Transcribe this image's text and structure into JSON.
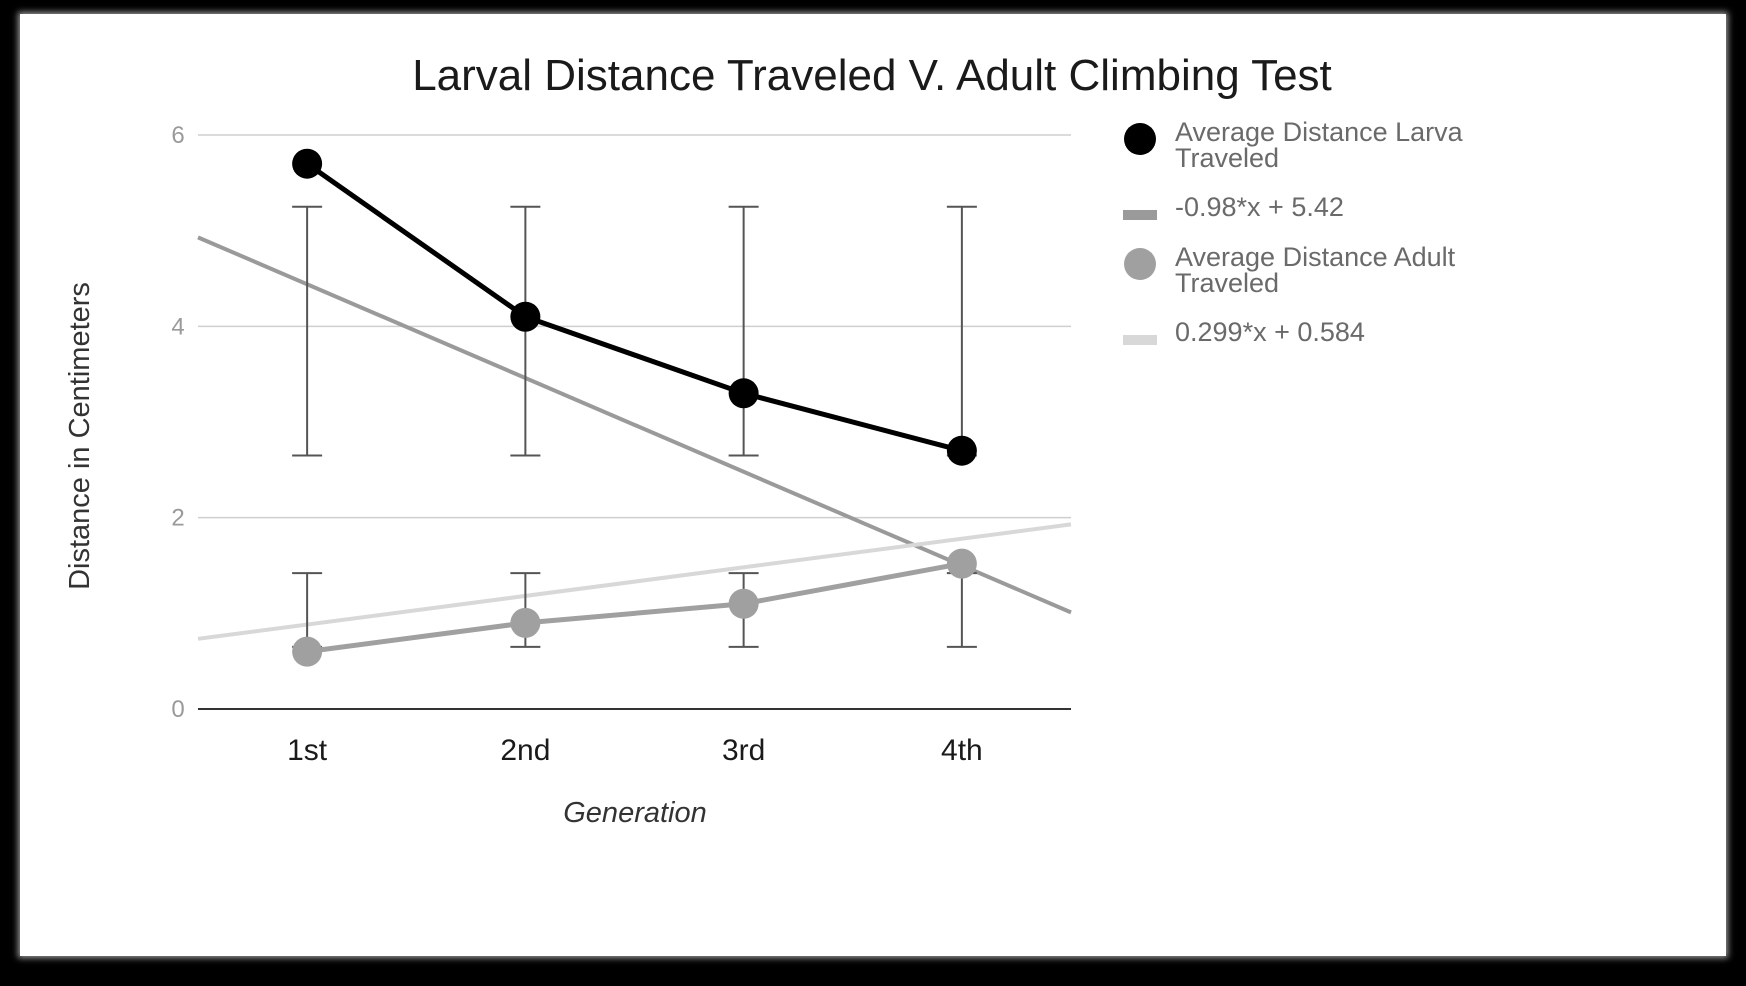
{
  "chart_data": {
    "type": "line",
    "title": "Larval Distance Traveled V. Adult Climbing Test",
    "xlabel": "Generation",
    "ylabel": "Distance in Centimeters",
    "categories": [
      "1st",
      "2nd",
      "3rd",
      "4th"
    ],
    "ylim": [
      0,
      6
    ],
    "yticks": [
      0,
      2,
      4,
      6
    ],
    "grid": true,
    "legend_position": "right",
    "series": [
      {
        "name": "Average Distance Larva Traveled",
        "values": [
          5.7,
          4.1,
          3.3,
          2.7
        ],
        "error_low": [
          2.65,
          2.65,
          2.65,
          2.65
        ],
        "error_high": [
          5.25,
          5.25,
          5.25,
          5.25
        ],
        "color": "#000000",
        "marker": "circle"
      },
      {
        "name": "-0.98*x + 5.42",
        "kind": "trendline",
        "slope": -0.98,
        "intercept": 5.42,
        "color": "#9a9a9a"
      },
      {
        "name": "Average Distance Adult Traveled",
        "values": [
          0.6,
          0.9,
          1.1,
          1.52
        ],
        "error_low": [
          0.65,
          0.65,
          0.65,
          0.65
        ],
        "error_high": [
          1.42,
          1.42,
          1.42,
          1.42
        ],
        "color": "#a0a0a0",
        "marker": "circle"
      },
      {
        "name": "0.299*x + 0.584",
        "kind": "trendline",
        "slope": 0.299,
        "intercept": 0.584,
        "color": "#d8d8d8"
      }
    ]
  }
}
